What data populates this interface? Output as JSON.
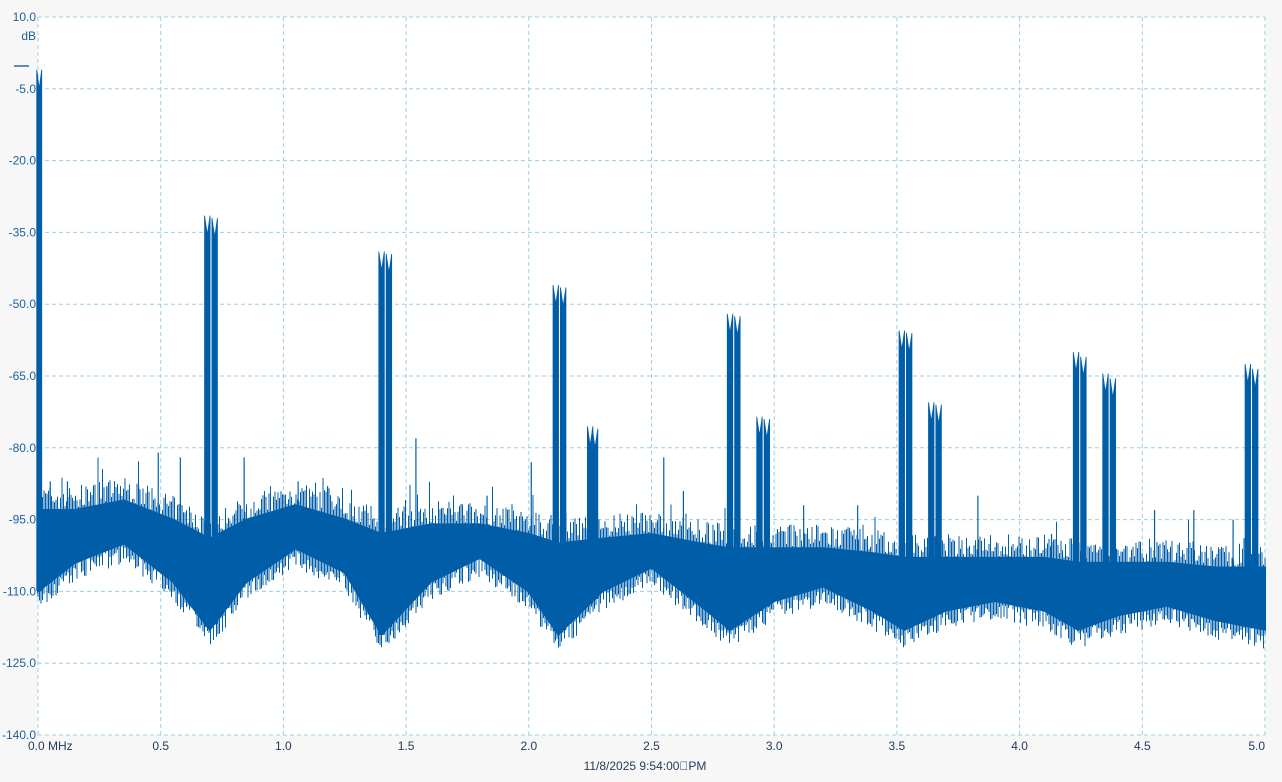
{
  "chart_data": {
    "type": "area",
    "title": "",
    "xlabel": "",
    "ylabel": "dB",
    "y_unit_label": "dB",
    "x_unit_label": "MHz",
    "xlim": [
      0.0,
      5.0
    ],
    "ylim": [
      -140.0,
      10.0
    ],
    "x_ticks": [
      "0.0 MHz",
      "0.5",
      "1.0",
      "1.5",
      "2.0",
      "2.5",
      "3.0",
      "3.5",
      "4.0",
      "4.5",
      "5.0"
    ],
    "x_tick_values": [
      0.0,
      0.5,
      1.0,
      1.5,
      2.0,
      2.5,
      3.0,
      3.5,
      4.0,
      4.5,
      5.0
    ],
    "y_ticks": [
      "10.0",
      "-5.0",
      "-20.0",
      "-35.0",
      "-50.0",
      "-65.0",
      "-80.0",
      "-95.0",
      "-110.0",
      "-125.0",
      "-140.0"
    ],
    "y_tick_values": [
      10,
      -5,
      -20,
      -35,
      -50,
      -65,
      -80,
      -95,
      -110,
      -125,
      -140
    ],
    "grid": true,
    "legend": "none",
    "color": "#005ea8",
    "timestamp": "11/8/2025 9:54:00\u0000PM",
    "noise_floor_points": [
      {
        "x": 0.0,
        "top": -93,
        "bottom": -110
      },
      {
        "x": 0.15,
        "top": -93,
        "bottom": -104
      },
      {
        "x": 0.35,
        "top": -91,
        "bottom": -100
      },
      {
        "x": 0.55,
        "top": -95,
        "bottom": -108
      },
      {
        "x": 0.7,
        "top": -99,
        "bottom": -118
      },
      {
        "x": 0.85,
        "top": -95,
        "bottom": -108
      },
      {
        "x": 1.05,
        "top": -92,
        "bottom": -101
      },
      {
        "x": 1.25,
        "top": -95,
        "bottom": -106
      },
      {
        "x": 1.4,
        "top": -98,
        "bottom": -119
      },
      {
        "x": 1.6,
        "top": -96,
        "bottom": -108
      },
      {
        "x": 1.8,
        "top": -96,
        "bottom": -103
      },
      {
        "x": 2.0,
        "top": -98,
        "bottom": -110
      },
      {
        "x": 2.12,
        "top": -100,
        "bottom": -119
      },
      {
        "x": 2.3,
        "top": -99,
        "bottom": -110
      },
      {
        "x": 2.5,
        "top": -98,
        "bottom": -105
      },
      {
        "x": 2.7,
        "top": -100,
        "bottom": -113
      },
      {
        "x": 2.82,
        "top": -101,
        "bottom": -118
      },
      {
        "x": 3.0,
        "top": -101,
        "bottom": -112
      },
      {
        "x": 3.2,
        "top": -101,
        "bottom": -109
      },
      {
        "x": 3.4,
        "top": -102,
        "bottom": -114
      },
      {
        "x": 3.53,
        "top": -103,
        "bottom": -118
      },
      {
        "x": 3.7,
        "top": -103,
        "bottom": -114
      },
      {
        "x": 3.9,
        "top": -103,
        "bottom": -112
      },
      {
        "x": 4.1,
        "top": -103,
        "bottom": -114
      },
      {
        "x": 4.24,
        "top": -104,
        "bottom": -118
      },
      {
        "x": 4.4,
        "top": -104,
        "bottom": -115
      },
      {
        "x": 4.6,
        "top": -104,
        "bottom": -113
      },
      {
        "x": 4.8,
        "top": -105,
        "bottom": -116
      },
      {
        "x": 5.0,
        "top": -105,
        "bottom": -118
      }
    ],
    "peaks": [
      {
        "x": 0.005,
        "y": -5.0
      },
      {
        "x": 0.69,
        "y": -35.5
      },
      {
        "x": 0.72,
        "y": -36.0
      },
      {
        "x": 1.4,
        "y": -43.0
      },
      {
        "x": 1.43,
        "y": -43.5
      },
      {
        "x": 2.11,
        "y": -50.0
      },
      {
        "x": 2.14,
        "y": -50.5
      },
      {
        "x": 2.25,
        "y": -79.5
      },
      {
        "x": 2.27,
        "y": -80.0
      },
      {
        "x": 2.82,
        "y": -56.0
      },
      {
        "x": 2.85,
        "y": -56.5
      },
      {
        "x": 2.94,
        "y": -77.5
      },
      {
        "x": 2.97,
        "y": -78.0
      },
      {
        "x": 3.52,
        "y": -59.5
      },
      {
        "x": 3.55,
        "y": -60.0
      },
      {
        "x": 3.64,
        "y": -74.5
      },
      {
        "x": 3.67,
        "y": -75.0
      },
      {
        "x": 4.23,
        "y": -64.0
      },
      {
        "x": 4.26,
        "y": -65.0
      },
      {
        "x": 4.35,
        "y": -68.5
      },
      {
        "x": 4.38,
        "y": -69.5
      },
      {
        "x": 4.93,
        "y": -66.5
      },
      {
        "x": 4.96,
        "y": -67.5
      }
    ],
    "spurs": [
      {
        "x": 0.05,
        "y": -87
      },
      {
        "x": 0.12,
        "y": -87
      },
      {
        "x": 0.28,
        "y": -88
      },
      {
        "x": 0.41,
        "y": -88
      },
      {
        "x": 0.49,
        "y": -81
      },
      {
        "x": 0.58,
        "y": -82
      },
      {
        "x": 0.84,
        "y": -82
      },
      {
        "x": 1.06,
        "y": -87
      },
      {
        "x": 1.18,
        "y": -88
      },
      {
        "x": 1.54,
        "y": -78
      },
      {
        "x": 1.83,
        "y": -90
      },
      {
        "x": 2.01,
        "y": -83
      },
      {
        "x": 2.55,
        "y": -82
      },
      {
        "x": 2.63,
        "y": -89
      },
      {
        "x": 3.12,
        "y": -92
      },
      {
        "x": 3.34,
        "y": -92
      },
      {
        "x": 3.83,
        "y": -90
      },
      {
        "x": 4.13,
        "y": -98
      },
      {
        "x": 4.55,
        "y": -93
      },
      {
        "x": 4.71,
        "y": -93
      },
      {
        "x": 4.87,
        "y": -95
      }
    ]
  }
}
